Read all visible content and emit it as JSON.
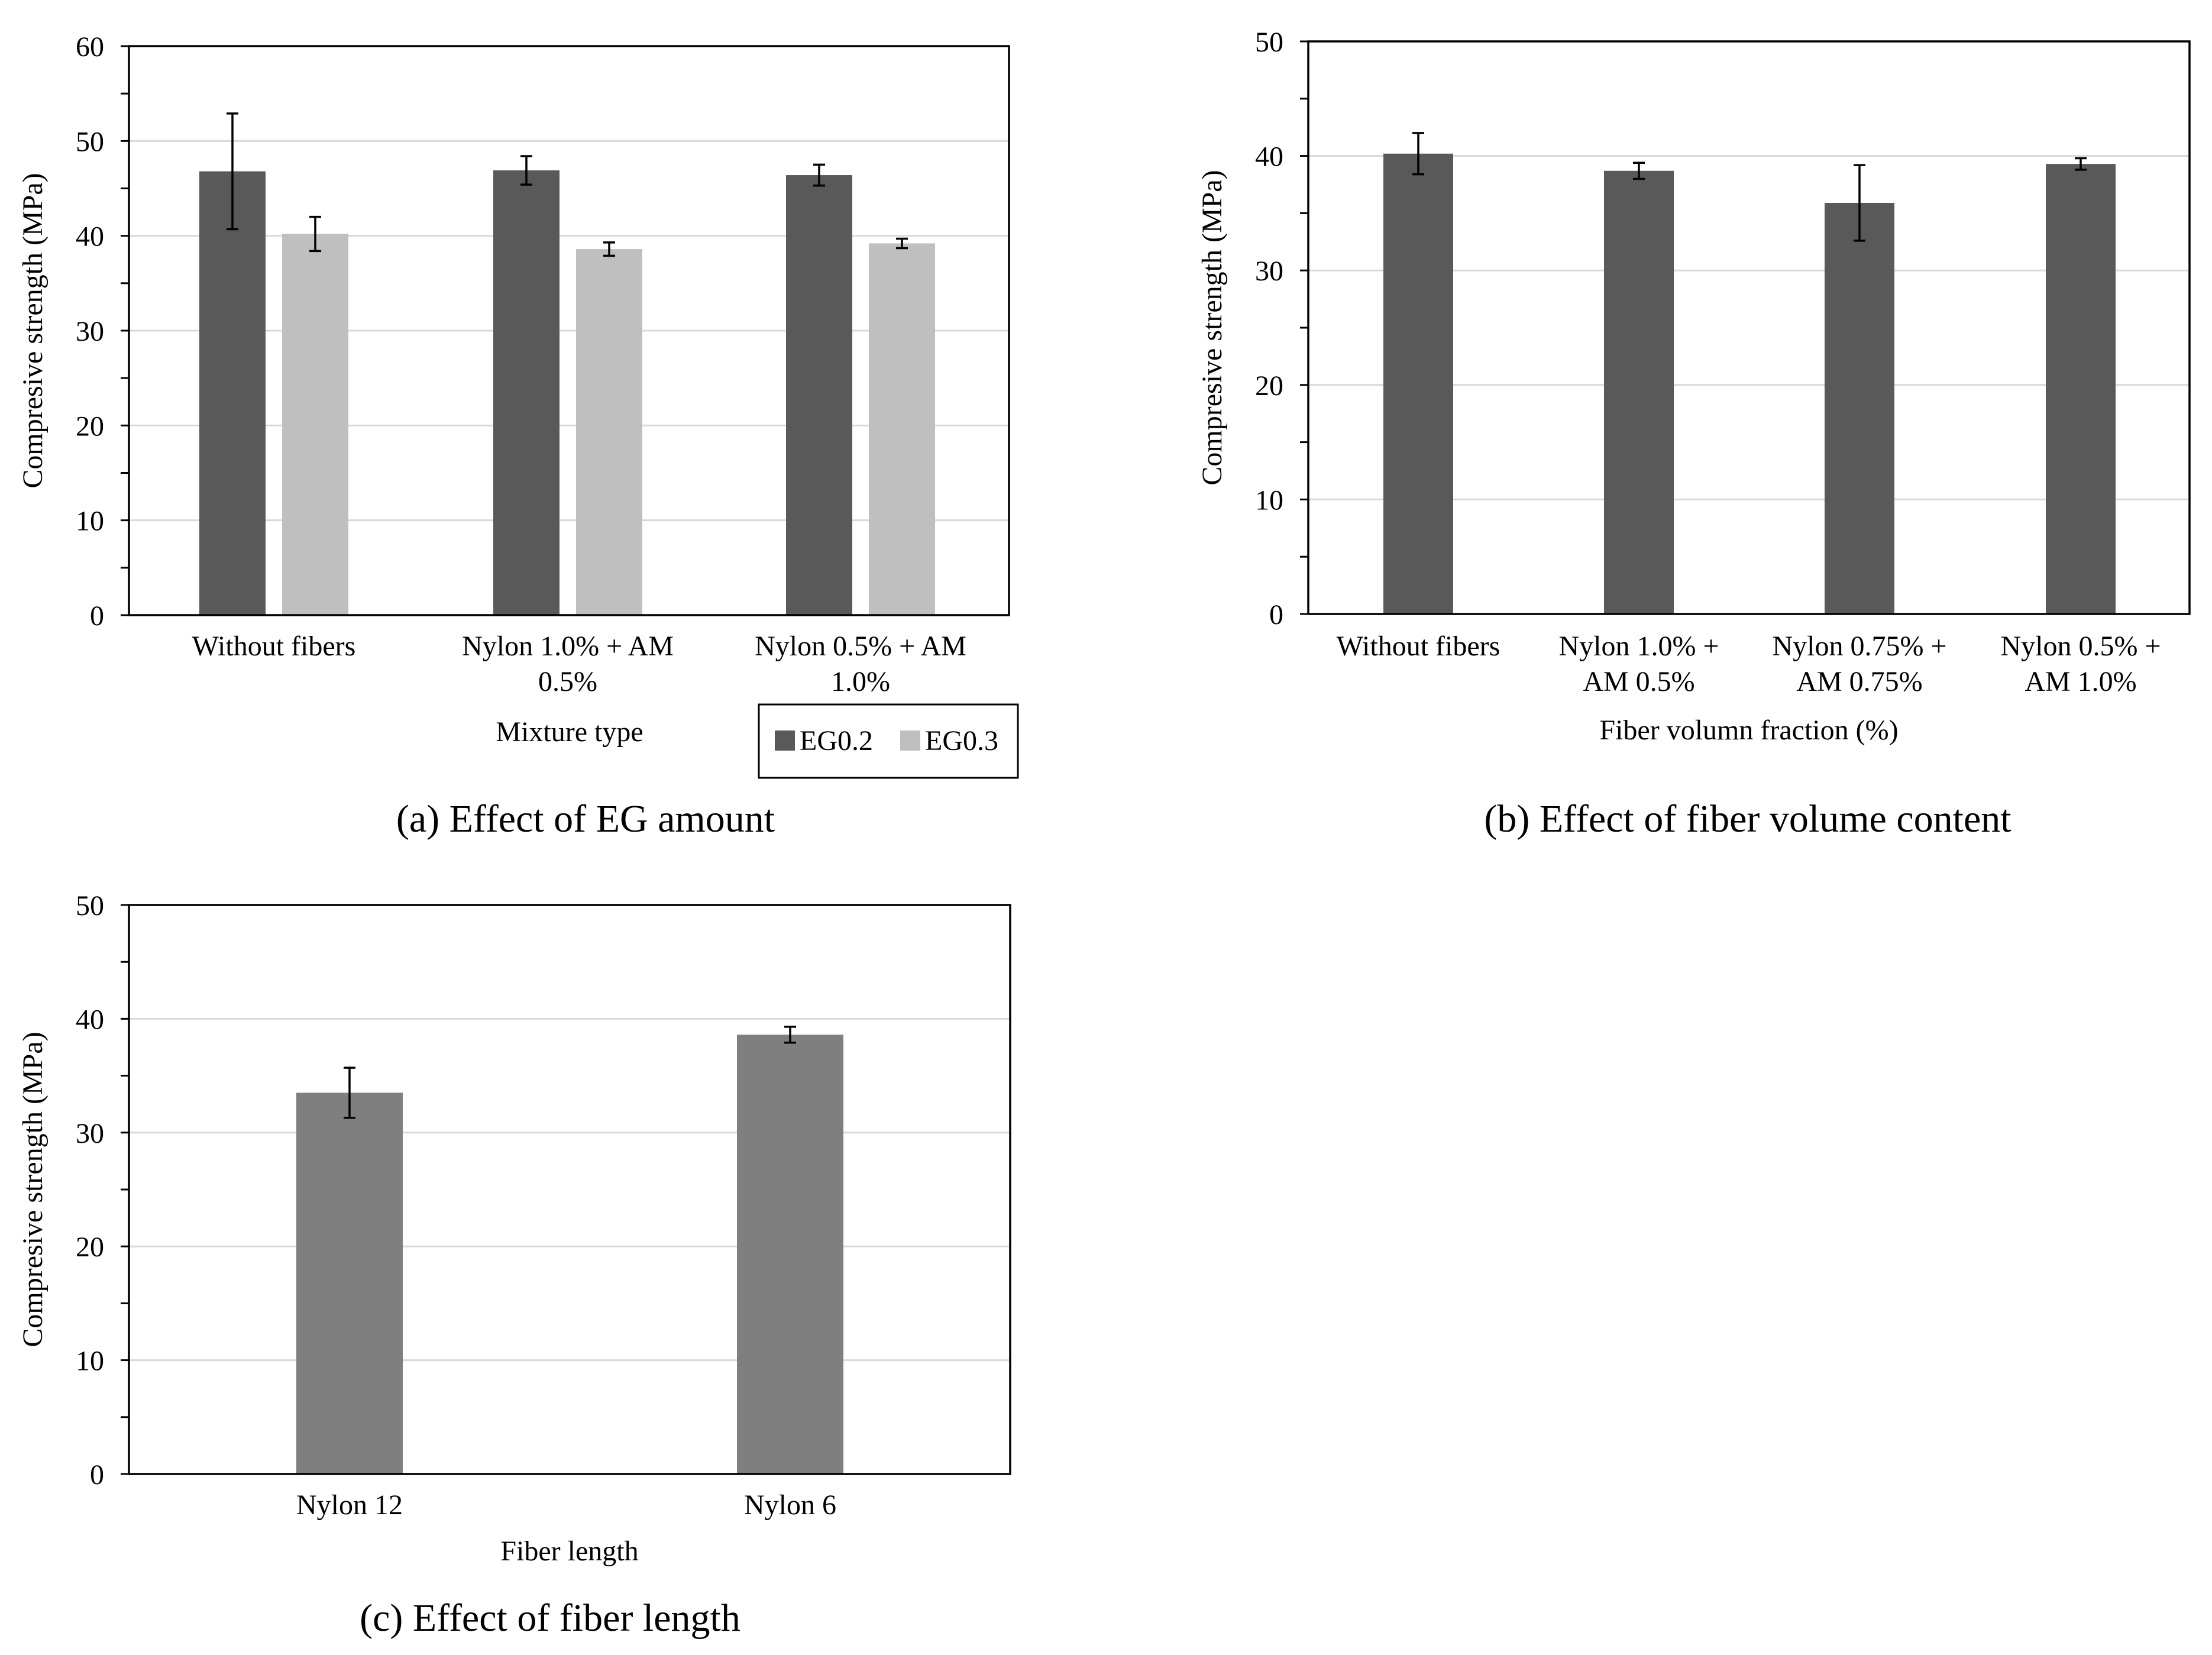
{
  "colors": {
    "dark": "#595959",
    "light": "#bfbfbf",
    "medium": "#7f7f7f",
    "grid": "#d9d9d9",
    "axis": "#000000"
  },
  "chart_data": [
    {
      "id": "a",
      "type": "bar",
      "caption": "(a) Effect of EG amount",
      "xlabel": "Mixture type",
      "ylabel": "Compresive strength (MPa)",
      "ylim": [
        0,
        60
      ],
      "yticks": [
        "0",
        "10",
        "20",
        "30",
        "40",
        "50",
        "60"
      ],
      "grid": true,
      "legend_position": "bottom-right, outside plot",
      "categories": [
        [
          "Without fibers"
        ],
        [
          "Nylon 1.0% + AM",
          "0.5%"
        ],
        [
          "Nylon 0.5% + AM",
          "1.0%"
        ]
      ],
      "series": [
        {
          "name": "EG0.2",
          "color": "#595959",
          "values": [
            46.8,
            46.9,
            46.4
          ],
          "errors": [
            6.1,
            1.5,
            1.1
          ]
        },
        {
          "name": "EG0.3",
          "color": "#bfbfbf",
          "values": [
            40.2,
            38.6,
            39.2
          ],
          "errors": [
            1.8,
            0.7,
            0.5
          ]
        }
      ]
    },
    {
      "id": "b",
      "type": "bar",
      "caption": "(b) Effect of fiber volume content",
      "xlabel": "Fiber volumn fraction (%)",
      "ylabel": "Compresive strength (MPa)",
      "ylim": [
        0,
        50
      ],
      "yticks": [
        "0",
        "10",
        "20",
        "30",
        "40",
        "50"
      ],
      "grid": true,
      "categories": [
        [
          "Without fibers"
        ],
        [
          "Nylon 1.0% +",
          "AM 0.5%"
        ],
        [
          "Nylon 0.75% +",
          "AM 0.75%"
        ],
        [
          "Nylon 0.5% +",
          "AM 1.0%"
        ]
      ],
      "series": [
        {
          "name": "",
          "color": "#595959",
          "values": [
            40.2,
            38.7,
            35.9,
            39.3
          ],
          "errors": [
            1.8,
            0.7,
            3.3,
            0.5
          ]
        }
      ]
    },
    {
      "id": "c",
      "type": "bar",
      "caption": "(c) Effect of fiber length",
      "xlabel": "Fiber length",
      "ylabel": "Compresive strength (MPa)",
      "ylim": [
        0,
        50
      ],
      "yticks": [
        "0",
        "10",
        "20",
        "30",
        "40",
        "50"
      ],
      "grid": true,
      "categories": [
        [
          "Nylon 12"
        ],
        [
          "Nylon 6"
        ]
      ],
      "series": [
        {
          "name": "",
          "color": "#7f7f7f",
          "values": [
            33.5,
            38.6
          ],
          "errors": [
            2.2,
            0.7
          ]
        }
      ]
    }
  ]
}
